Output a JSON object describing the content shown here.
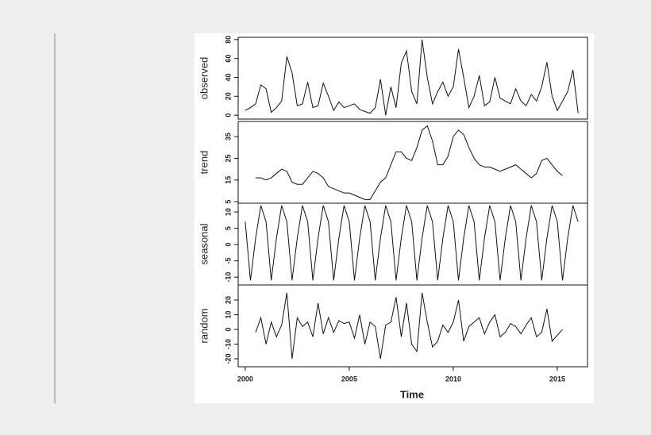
{
  "chart_data": {
    "type": "line",
    "color": "#111111",
    "xlabel": "Time",
    "xlim": [
      1999.66,
      2016.45
    ],
    "xticks": [
      2000,
      2005,
      2010,
      2015
    ],
    "x": [
      2000,
      2000.25,
      2000.5,
      2000.75,
      2001,
      2001.25,
      2001.5,
      2001.75,
      2002,
      2002.25,
      2002.5,
      2002.75,
      2003,
      2003.25,
      2003.5,
      2003.75,
      2004,
      2004.25,
      2004.5,
      2004.75,
      2005,
      2005.25,
      2005.5,
      2005.75,
      2006,
      2006.25,
      2006.5,
      2006.75,
      2007,
      2007.25,
      2007.5,
      2007.75,
      2008,
      2008.25,
      2008.5,
      2008.75,
      2009,
      2009.25,
      2009.5,
      2009.75,
      2010,
      2010.25,
      2010.5,
      2010.75,
      2011,
      2011.25,
      2011.5,
      2011.75,
      2012,
      2012.25,
      2012.5,
      2012.75,
      2013,
      2013.25,
      2013.5,
      2013.75,
      2014,
      2014.25,
      2014.5,
      2014.75,
      2015,
      2015.25,
      2015.5,
      2015.75,
      2016
    ],
    "panels": [
      {
        "ylabel": "observed",
        "ylim": [
          -4.1,
          82.4
        ],
        "yticks": [
          0,
          20,
          40,
          60,
          80
        ],
        "values": [
          5,
          8,
          12,
          32,
          28,
          3,
          8,
          15,
          62,
          45,
          10,
          12,
          35,
          8,
          10,
          34,
          20,
          5,
          14,
          8,
          10,
          12,
          6,
          4,
          2,
          8,
          38,
          0,
          30,
          8,
          55,
          68,
          25,
          12,
          80,
          40,
          12,
          25,
          35,
          20,
          30,
          70,
          40,
          8,
          20,
          42,
          10,
          14,
          40,
          18,
          15,
          12,
          28,
          15,
          10,
          22,
          15,
          30,
          56,
          20,
          5,
          15,
          25,
          48,
          2
        ]
      },
      {
        "ylabel": "trend",
        "ylim": [
          4.3,
          42
        ],
        "yticks": [
          5,
          15,
          25,
          35
        ],
        "values": [
          null,
          null,
          16,
          16,
          15,
          16,
          18,
          20,
          19,
          14,
          13,
          13,
          16,
          19,
          18,
          16,
          12,
          11,
          10,
          9,
          9,
          8,
          7,
          6,
          6,
          10,
          14,
          16,
          22,
          28,
          28,
          25,
          24,
          30,
          38,
          40,
          33,
          22,
          22,
          26,
          35,
          38,
          36,
          30,
          25,
          22,
          21,
          21,
          20,
          19,
          20,
          21,
          22,
          20,
          18,
          16,
          18,
          24,
          25,
          22,
          19,
          17,
          null,
          null,
          null
        ]
      },
      {
        "ylabel": "seasonal",
        "ylim": [
          -12.4,
          12.7
        ],
        "yticks": [
          -10,
          -5,
          0,
          5,
          10
        ],
        "values": [
          7,
          -11,
          2,
          12,
          7,
          -11,
          2,
          12,
          7,
          -11,
          2,
          12,
          7,
          -11,
          2,
          12,
          7,
          -11,
          2,
          12,
          7,
          -11,
          2,
          12,
          7,
          -11,
          2,
          12,
          7,
          -11,
          2,
          12,
          7,
          -11,
          2,
          12,
          7,
          -11,
          2,
          12,
          7,
          -11,
          2,
          12,
          7,
          -11,
          2,
          12,
          7,
          -11,
          2,
          12,
          7,
          -11,
          2,
          12,
          7,
          -11,
          2,
          12,
          7,
          -11,
          2,
          12,
          7
        ]
      },
      {
        "ylabel": "random",
        "ylim": [
          -25.4,
          30.3
        ],
        "yticks": [
          -20,
          -10,
          0,
          10,
          20
        ],
        "values": [
          null,
          null,
          -2,
          8,
          -10,
          5,
          -5,
          3,
          25,
          -20,
          8,
          2,
          5,
          -5,
          18,
          -3,
          8,
          -2,
          6,
          4,
          5,
          -6,
          10,
          -10,
          5,
          2,
          -20,
          3,
          5,
          22,
          -5,
          18,
          -10,
          -15,
          25,
          5,
          -12,
          -8,
          3,
          -2,
          5,
          20,
          -8,
          2,
          5,
          8,
          -3,
          5,
          10,
          -5,
          -2,
          4,
          2,
          -3,
          3,
          8,
          -5,
          -2,
          14,
          -8,
          -4,
          0,
          null,
          null,
          null
        ]
      }
    ]
  }
}
